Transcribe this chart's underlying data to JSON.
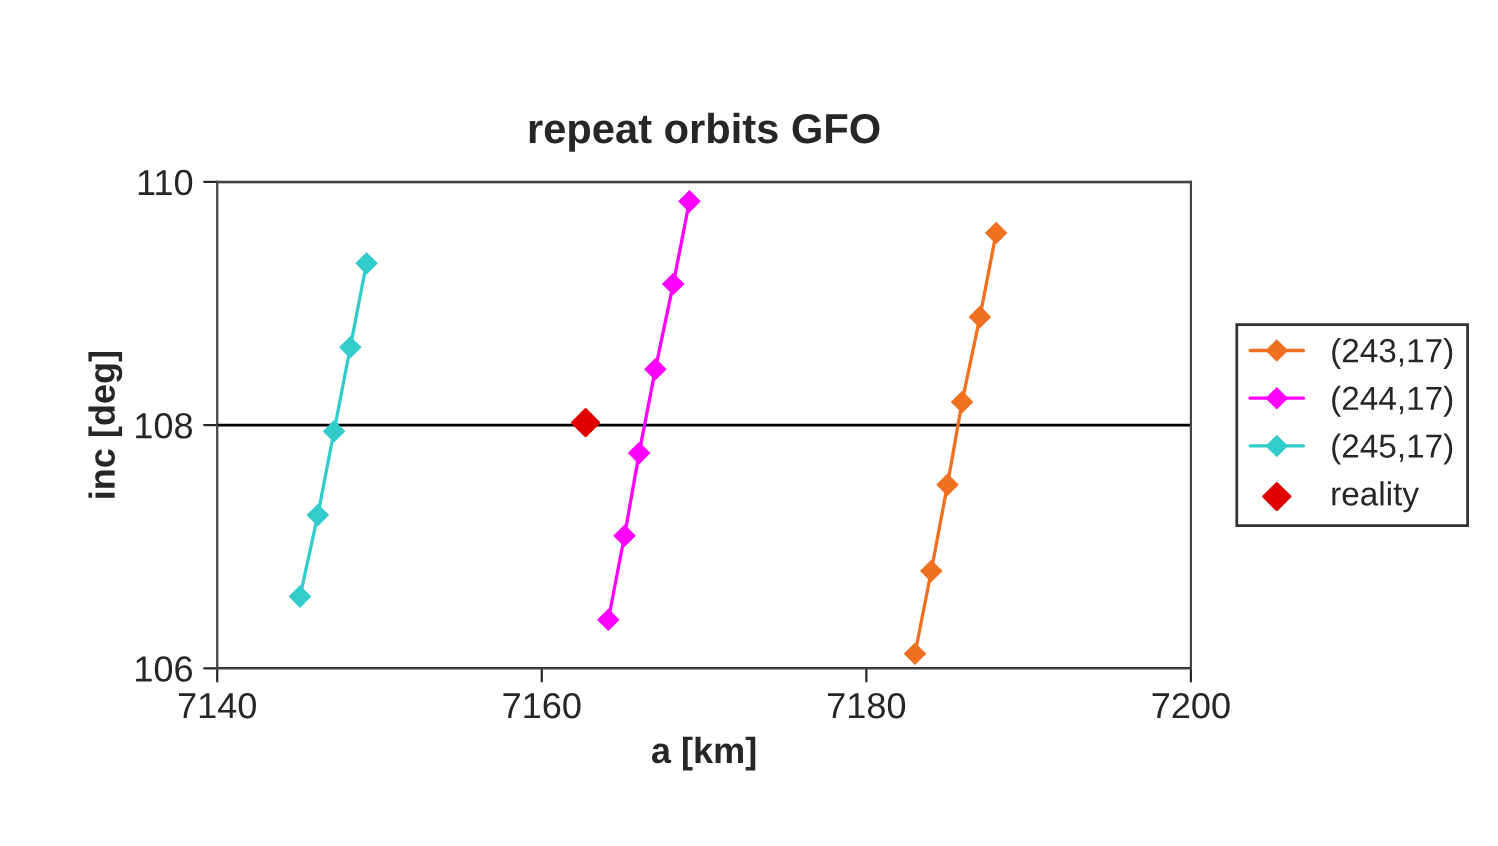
{
  "chart_data": {
    "type": "line",
    "title": "repeat orbits GFO",
    "xlabel": "a [km]",
    "ylabel": "inc [deg]",
    "xlim": [
      7140,
      7200
    ],
    "xticks": [
      7140,
      7160,
      7180,
      7200
    ],
    "ylim": [
      106,
      110
    ],
    "yticks": [
      106,
      108,
      110
    ],
    "grid": "y",
    "legend": "right",
    "marker": "diamond",
    "series": [
      {
        "name": "(243,17)",
        "color": "#f07020",
        "x": [
          7183.0,
          7184.0,
          7185.0,
          7185.9,
          7187.0,
          7188.0
        ],
        "values": [
          106.12,
          106.8,
          107.51,
          108.19,
          108.89,
          109.58
        ]
      },
      {
        "name": "(244,17)",
        "color": "#ff00ff",
        "x": [
          7164.1,
          7165.1,
          7166.0,
          7167.0,
          7168.1,
          7169.1
        ],
        "values": [
          106.4,
          107.09,
          107.77,
          108.46,
          109.16,
          109.84
        ]
      },
      {
        "name": "(245,17)",
        "color": "#33cccc",
        "x": [
          7145.1,
          7146.2,
          7147.2,
          7148.2,
          7149.2
        ],
        "values": [
          106.59,
          107.26,
          107.95,
          108.64,
          109.33
        ]
      },
      {
        "name": "reality",
        "type": "scatter",
        "color": "#e00000",
        "x": [
          7162.7
        ],
        "values": [
          108.02
        ]
      }
    ]
  }
}
